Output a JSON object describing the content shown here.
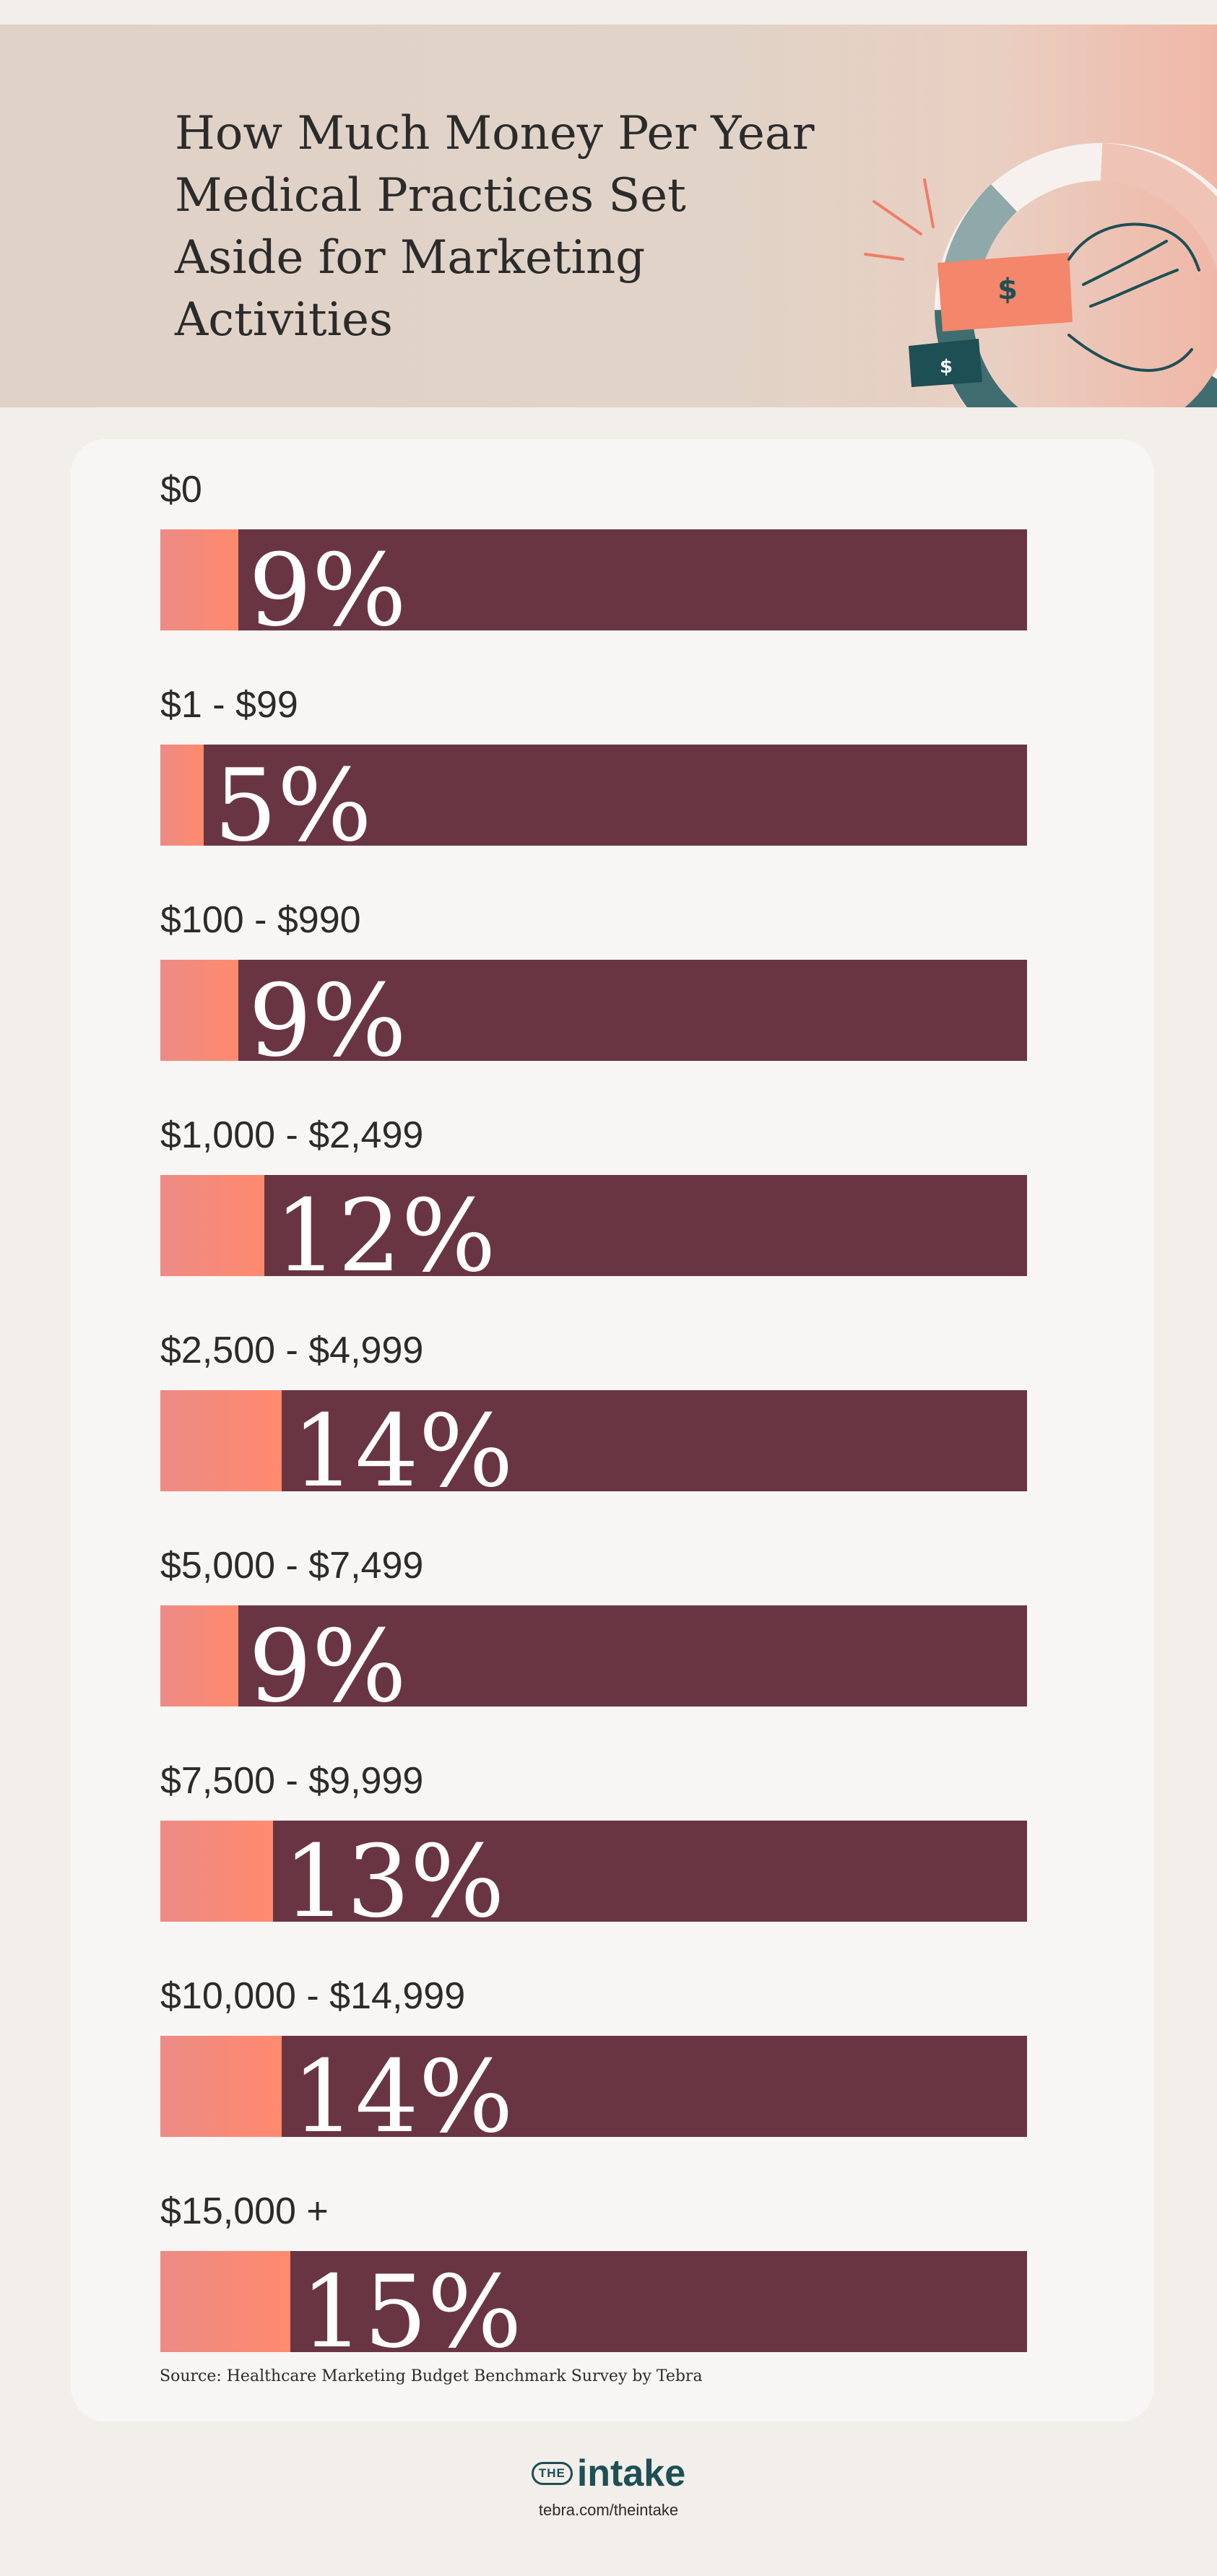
{
  "header": {
    "title": "How Much Money Per Year Medical Practices Set Aside for Marketing Activities",
    "illustration": [
      "donut-chart-icon",
      "hand-icon",
      "dollar-bill-icon"
    ],
    "bill_symbol": "$"
  },
  "chart_data": {
    "type": "bar",
    "title": "How Much Money Per Year Medical Practices Set Aside for Marketing Activities",
    "categories": [
      "$0",
      "$1 - $99",
      "$100 - $990",
      "$1,000 - $2,499",
      "$2,500 - $4,999",
      "$5,000 - $7,499",
      "$7,500 - $9,999",
      "$10,000 - $14,999",
      "$15,000 +"
    ],
    "values": [
      9,
      5,
      9,
      12,
      14,
      9,
      13,
      14,
      15
    ],
    "value_labels": [
      "9%",
      "5%",
      "9%",
      "12%",
      "14%",
      "9%",
      "13%",
      "14%",
      "15%"
    ],
    "unit": "%",
    "xlim": [
      0,
      100
    ],
    "grid": false,
    "orientation": "horizontal",
    "colors": {
      "fill": "#ff8a6e",
      "fill_start": "#ec8b86",
      "track": "#6a3543",
      "value_text": "#ffffff",
      "category_text": "#2b2b2b"
    }
  },
  "source": "Source: Healthcare Marketing Budget Benchmark Survey by Tebra",
  "footer": {
    "logo_the": "THE",
    "logo_word": "intake",
    "url": "tebra.com/theintake"
  },
  "colors": {
    "page_bg": "#f2eeea",
    "header_bg": "#dfd2c6",
    "card_bg": "#f8f6f4",
    "brand_teal": "#1d4f55"
  }
}
